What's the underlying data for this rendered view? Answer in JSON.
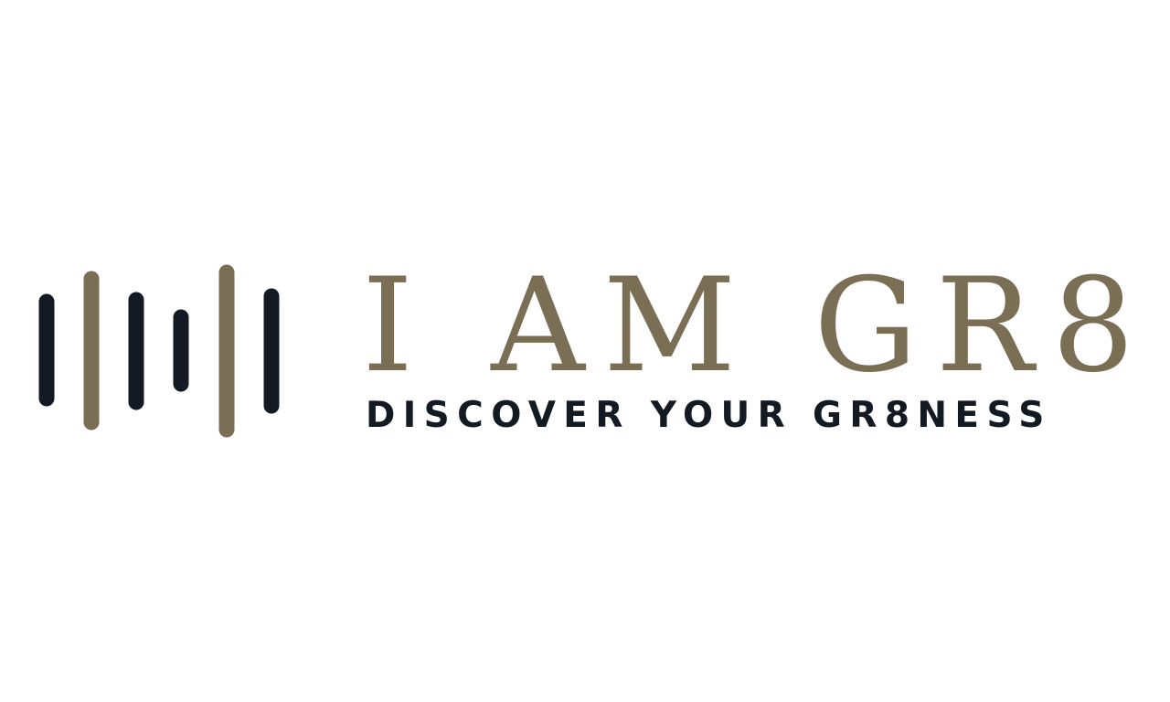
{
  "brand": {
    "title": "I AM GR8",
    "tagline": "DISCOVER YOUR GR8NESS"
  },
  "logo": {
    "icon": "sound-wave-bars-icon",
    "bars": [
      {
        "name": "bar-1",
        "color": "#141a22"
      },
      {
        "name": "bar-2",
        "color": "#7a6f55"
      },
      {
        "name": "bar-3",
        "color": "#141a22"
      },
      {
        "name": "bar-4",
        "color": "#141a22"
      },
      {
        "name": "bar-5",
        "color": "#7a6f55"
      },
      {
        "name": "bar-6",
        "color": "#141a22"
      }
    ]
  },
  "colors": {
    "background": "#ffffff",
    "gold": "#7a6f55",
    "dark": "#141a22"
  }
}
